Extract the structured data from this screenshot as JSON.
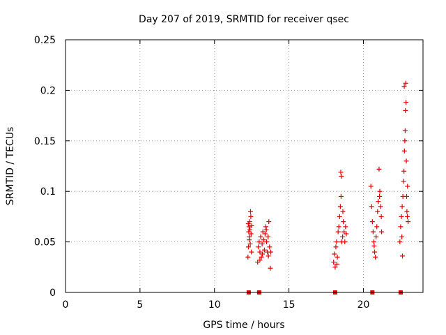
{
  "chart_data": {
    "type": "scatter",
    "title": "Day 207 of 2019, SRMTID for receiver qsec",
    "xlabel": "GPS time / hours",
    "ylabel": "SRMTID / TECUs",
    "xlim": [
      0,
      24
    ],
    "ylim": [
      0,
      0.25
    ],
    "x_ticks": [
      0,
      5,
      10,
      15,
      20
    ],
    "x_tick_labels": [
      "0",
      "5",
      "10",
      "15",
      "20"
    ],
    "y_ticks": [
      0,
      0.05,
      0.1,
      0.15,
      0.2,
      0.25
    ],
    "y_tick_labels": [
      "0",
      "0.05",
      "0.1",
      "0.15",
      "0.2",
      "0.25"
    ],
    "grid": true,
    "marker": "plus",
    "color": "#e00000",
    "series": [
      {
        "name": "SRMTID",
        "points": [
          [
            12.25,
            0.035
          ],
          [
            12.28,
            0.045
          ],
          [
            12.3,
            0.06
          ],
          [
            12.32,
            0.065
          ],
          [
            12.34,
            0.055
          ],
          [
            12.36,
            0.07
          ],
          [
            12.38,
            0.062
          ],
          [
            12.4,
            0.048
          ],
          [
            12.42,
            0.08
          ],
          [
            12.44,
            0.075
          ],
          [
            12.46,
            0.058
          ],
          [
            12.48,
            0.04
          ],
          [
            12.5,
            0.066
          ],
          [
            12.33,
            0.052
          ],
          [
            12.27,
            0.068
          ],
          [
            12.9,
            0.03
          ],
          [
            12.95,
            0.045
          ],
          [
            13.0,
            0.05
          ],
          [
            13.05,
            0.04
          ],
          [
            13.1,
            0.055
          ],
          [
            13.15,
            0.035
          ],
          [
            13.2,
            0.048
          ],
          [
            13.25,
            0.06
          ],
          [
            13.3,
            0.052
          ],
          [
            13.35,
            0.042
          ],
          [
            13.4,
            0.058
          ],
          [
            13.45,
            0.065
          ],
          [
            13.5,
            0.05
          ],
          [
            13.55,
            0.04
          ],
          [
            13.6,
            0.055
          ],
          [
            13.65,
            0.07
          ],
          [
            13.7,
            0.045
          ],
          [
            13.75,
            0.024
          ],
          [
            13.78,
            0.04
          ],
          [
            13.05,
            0.032
          ],
          [
            13.22,
            0.038
          ],
          [
            13.48,
            0.062
          ],
          [
            13.62,
            0.036
          ],
          [
            18.0,
            0.03
          ],
          [
            18.05,
            0.038
          ],
          [
            18.1,
            0.025
          ],
          [
            18.15,
            0.045
          ],
          [
            18.2,
            0.05
          ],
          [
            18.25,
            0.035
          ],
          [
            18.3,
            0.06
          ],
          [
            18.35,
            0.065
          ],
          [
            18.4,
            0.075
          ],
          [
            18.45,
            0.085
          ],
          [
            18.5,
            0.095
          ],
          [
            18.52,
            0.115
          ],
          [
            18.55,
            0.05
          ],
          [
            18.6,
            0.055
          ],
          [
            18.65,
            0.07
          ],
          [
            18.7,
            0.06
          ],
          [
            18.75,
            0.05
          ],
          [
            18.8,
            0.065
          ],
          [
            18.85,
            0.058
          ],
          [
            18.48,
            0.119
          ],
          [
            18.22,
            0.028
          ],
          [
            18.62,
            0.08
          ],
          [
            20.5,
            0.105
          ],
          [
            20.55,
            0.085
          ],
          [
            20.6,
            0.07
          ],
          [
            20.65,
            0.06
          ],
          [
            20.7,
            0.05
          ],
          [
            20.75,
            0.04
          ],
          [
            20.8,
            0.035
          ],
          [
            20.85,
            0.055
          ],
          [
            20.9,
            0.065
          ],
          [
            20.95,
            0.08
          ],
          [
            21.0,
            0.09
          ],
          [
            21.05,
            0.122
          ],
          [
            21.1,
            0.1
          ],
          [
            21.15,
            0.085
          ],
          [
            21.2,
            0.075
          ],
          [
            21.22,
            0.06
          ],
          [
            20.72,
            0.046
          ],
          [
            21.08,
            0.095
          ],
          [
            22.45,
            0.05
          ],
          [
            22.5,
            0.065
          ],
          [
            22.55,
            0.075
          ],
          [
            22.6,
            0.085
          ],
          [
            22.65,
            0.095
          ],
          [
            22.7,
            0.11
          ],
          [
            22.72,
            0.12
          ],
          [
            22.75,
            0.14
          ],
          [
            22.78,
            0.15
          ],
          [
            22.8,
            0.16
          ],
          [
            22.82,
            0.18
          ],
          [
            22.84,
            0.207
          ],
          [
            22.86,
            0.188
          ],
          [
            22.88,
            0.13
          ],
          [
            22.9,
            0.095
          ],
          [
            22.92,
            0.08
          ],
          [
            22.95,
            0.075
          ],
          [
            23.0,
            0.07
          ],
          [
            22.62,
            0.036
          ],
          [
            22.74,
            0.204
          ],
          [
            22.96,
            0.105
          ],
          [
            22.58,
            0.055
          ]
        ]
      }
    ],
    "zero_markers": [
      12.3,
      13.0,
      18.1,
      20.6,
      22.5
    ]
  }
}
